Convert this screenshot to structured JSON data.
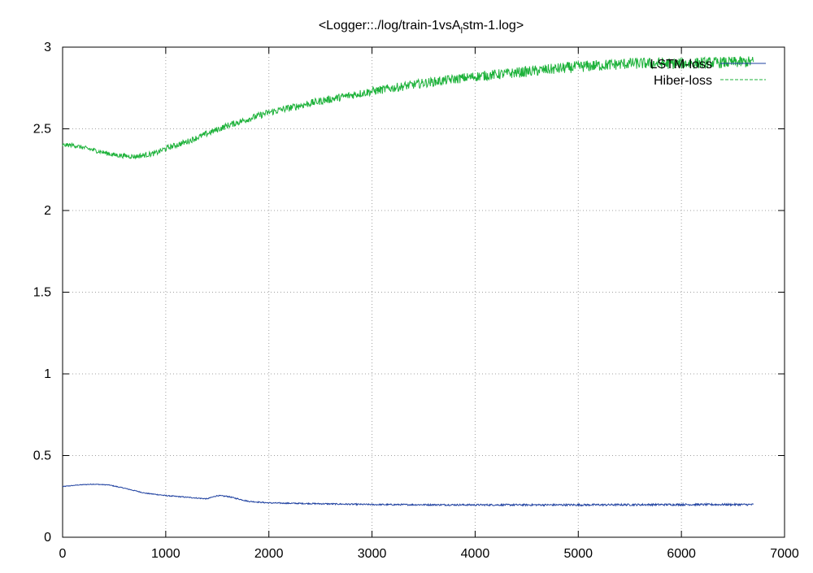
{
  "chart_data": {
    "type": "line",
    "title_parts": [
      "<Logger::./log/train-1vsA",
      "l",
      "stm-1.log>"
    ],
    "xlabel": "",
    "ylabel": "",
    "xlim": [
      0,
      7000
    ],
    "ylim": [
      0,
      3
    ],
    "x_ticks": [
      0,
      1000,
      2000,
      3000,
      4000,
      5000,
      6000,
      7000
    ],
    "y_ticks": [
      0,
      0.5,
      1,
      1.5,
      2,
      2.5,
      3
    ],
    "y_tick_labels": [
      "0",
      "0.5",
      "1",
      "1.5",
      "2",
      "2.5",
      "3"
    ],
    "grid": true,
    "legend_position": "top-right",
    "series": [
      {
        "name": "LSTM-loss",
        "color": "#1e40a0",
        "style": "solid",
        "noise": 0.006,
        "points": [
          [
            0,
            0.31
          ],
          [
            150,
            0.32
          ],
          [
            300,
            0.325
          ],
          [
            450,
            0.32
          ],
          [
            600,
            0.3
          ],
          [
            800,
            0.27
          ],
          [
            1000,
            0.255
          ],
          [
            1200,
            0.245
          ],
          [
            1400,
            0.235
          ],
          [
            1500,
            0.255
          ],
          [
            1600,
            0.25
          ],
          [
            1700,
            0.235
          ],
          [
            1800,
            0.22
          ],
          [
            2000,
            0.21
          ],
          [
            2500,
            0.205
          ],
          [
            3000,
            0.2
          ],
          [
            4000,
            0.198
          ],
          [
            5000,
            0.198
          ],
          [
            6000,
            0.2
          ],
          [
            6700,
            0.2
          ]
        ]
      },
      {
        "name": "Hiber-loss",
        "color": "#1db23a",
        "style": "dashed",
        "noise": 0.035,
        "points": [
          [
            0,
            2.4
          ],
          [
            100,
            2.4
          ],
          [
            300,
            2.37
          ],
          [
            500,
            2.34
          ],
          [
            700,
            2.33
          ],
          [
            900,
            2.35
          ],
          [
            1000,
            2.38
          ],
          [
            1200,
            2.42
          ],
          [
            1400,
            2.47
          ],
          [
            1600,
            2.52
          ],
          [
            1800,
            2.56
          ],
          [
            2000,
            2.6
          ],
          [
            2500,
            2.67
          ],
          [
            3000,
            2.73
          ],
          [
            3500,
            2.78
          ],
          [
            4000,
            2.82
          ],
          [
            4500,
            2.85
          ],
          [
            5000,
            2.88
          ],
          [
            5500,
            2.9
          ],
          [
            6000,
            2.9
          ],
          [
            6700,
            2.91
          ]
        ]
      }
    ]
  }
}
